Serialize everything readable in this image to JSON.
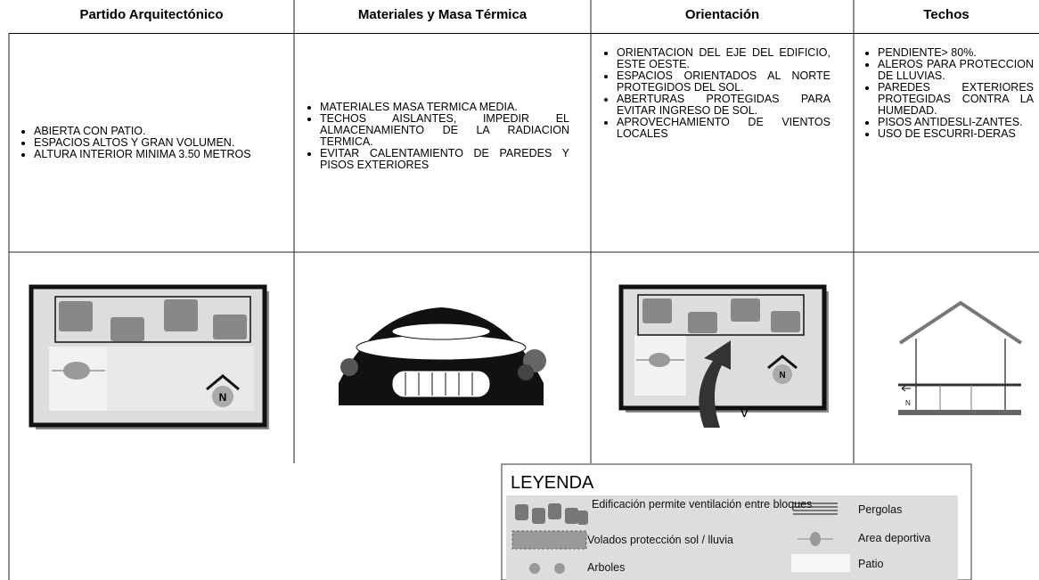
{
  "header": {
    "columns": [
      "Partido Arquitectónico",
      "Materiales y Masa Térmica",
      "Orientación",
      "Techos"
    ]
  },
  "criteria": [
    [
      "ABIERTA CON PATIO.",
      "ESPACIOS ALTOS Y GRAN VOLUMEN.",
      "ALTURA INTERIOR MINIMA 3.50 METROS"
    ],
    [
      "MATERIALES MASA TERMICA MEDIA.",
      "TECHOS AISLANTES, IMPEDIR EL ALMACENAMIENTO DE LA RADIACION TERMICA.",
      "EVITAR CALENTAMIENTO DE PAREDES Y PISOS EXTERIORES"
    ],
    [
      "ORIENTACION DEL EJE DEL EDIFICIO, ESTE OESTE.",
      "ESPACIOS ORIENTADOS AL NORTE PROTEGIDOS DEL SOL.",
      "ABERTURAS PROTEGIDAS PARA EVITAR INGRESO DE SOL.",
      "APROVECHAMIENTO DE VIENTOS LOCALES"
    ],
    [
      "PENDIENTE> 80%.",
      "ALEROS PARA PROTECCION DE LLUVIAS.",
      "PAREDES EXTERIORES PROTEGIDAS CONTRA LA HUMEDAD.",
      "PISOS ANTIDESLI-ZANTES.",
      "USO DE ESCURRI-DERAS"
    ]
  ],
  "diagram_labels": {
    "north": "N",
    "wind": "V"
  },
  "legend": {
    "title": "LEYENDA",
    "items": [
      "Edificación permite ventilación entre bloques",
      "Pergolas",
      "Volados protección sol / lluvia",
      "Area deportiva",
      "Arboles",
      "Patio"
    ]
  }
}
